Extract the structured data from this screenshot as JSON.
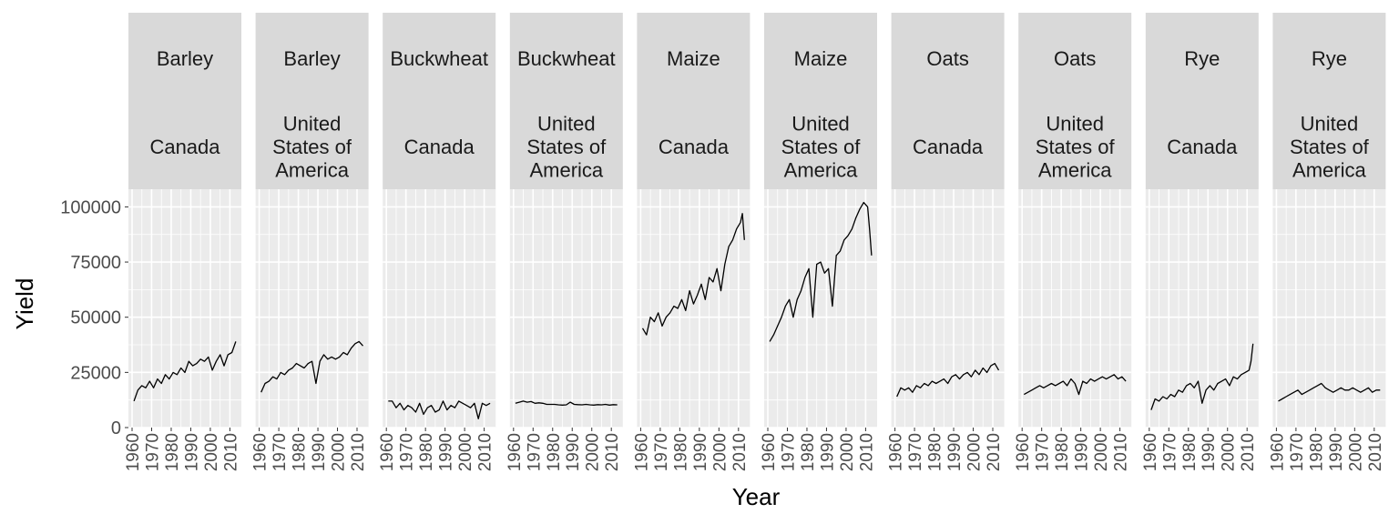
{
  "chart_data": {
    "type": "line",
    "xlabel": "Year",
    "ylabel": "Yield",
    "xlim": [
      1960,
      2014
    ],
    "ylim": [
      0,
      108000
    ],
    "x_ticks": [
      1960,
      1970,
      1980,
      1990,
      2000,
      2010
    ],
    "y_ticks": [
      0,
      25000,
      50000,
      75000,
      100000
    ],
    "y_tick_labels": [
      "0",
      "25000",
      "50000",
      "75000",
      "100000"
    ],
    "grid": true,
    "colors": {
      "panel_bg": "#ebebeb",
      "strip_bg": "#d9d9d9",
      "grid": "#ffffff",
      "line": "#000000"
    },
    "panels": [
      {
        "crop": "Barley",
        "country": [
          "Canada"
        ],
        "x": [
          1961,
          1963,
          1965,
          1967,
          1969,
          1971,
          1973,
          1975,
          1977,
          1979,
          1981,
          1983,
          1985,
          1987,
          1989,
          1991,
          1993,
          1995,
          1997,
          1999,
          2001,
          2003,
          2005,
          2007,
          2009,
          2011,
          2013
        ],
        "y": [
          12000,
          17000,
          19000,
          18000,
          21000,
          18000,
          22000,
          20000,
          24000,
          22000,
          25000,
          24000,
          27000,
          25000,
          30000,
          28000,
          29000,
          31000,
          30000,
          32000,
          26000,
          30000,
          33000,
          28000,
          33000,
          34000,
          39000
        ]
      },
      {
        "crop": "Barley",
        "country": [
          "United",
          "States of",
          "America"
        ],
        "x": [
          1961,
          1963,
          1965,
          1967,
          1969,
          1971,
          1973,
          1975,
          1977,
          1979,
          1981,
          1983,
          1985,
          1987,
          1989,
          1991,
          1993,
          1995,
          1997,
          1999,
          2001,
          2003,
          2005,
          2007,
          2009,
          2011,
          2013
        ],
        "y": [
          16000,
          20000,
          21000,
          23000,
          22000,
          25000,
          24000,
          26000,
          27000,
          29000,
          28000,
          27000,
          29000,
          30000,
          20000,
          30000,
          33000,
          31000,
          32000,
          31000,
          32000,
          34000,
          33000,
          36000,
          38000,
          39000,
          37000
        ]
      },
      {
        "crop": "Buckwheat",
        "country": [
          "Canada"
        ],
        "x": [
          1961,
          1963,
          1965,
          1967,
          1969,
          1971,
          1973,
          1975,
          1977,
          1979,
          1981,
          1983,
          1985,
          1987,
          1989,
          1991,
          1993,
          1995,
          1997,
          1999,
          2001,
          2003,
          2005,
          2007,
          2009,
          2011,
          2013
        ],
        "y": [
          12000,
          12000,
          9000,
          11000,
          8000,
          10000,
          9000,
          7000,
          11000,
          6000,
          9000,
          10000,
          7000,
          8000,
          12000,
          8000,
          10000,
          9000,
          12000,
          11000,
          10000,
          9000,
          11000,
          4000,
          11000,
          10000,
          11000
        ]
      },
      {
        "crop": "Buckwheat",
        "country": [
          "United",
          "States of",
          "America"
        ],
        "x": [
          1961,
          1963,
          1965,
          1967,
          1969,
          1971,
          1973,
          1975,
          1977,
          1979,
          1981,
          1983,
          1985,
          1987,
          1989,
          1991,
          1993,
          1995,
          1997,
          1999,
          2001,
          2003,
          2005,
          2007,
          2009,
          2011,
          2013
        ],
        "y": [
          11000,
          11500,
          12000,
          11500,
          11800,
          11000,
          11200,
          11000,
          10500,
          10500,
          10500,
          10300,
          10200,
          10300,
          11500,
          10500,
          10400,
          10300,
          10500,
          10300,
          10200,
          10400,
          10300,
          10500,
          10200,
          10400,
          10300
        ]
      },
      {
        "crop": "Maize",
        "country": [
          "Canada"
        ],
        "x": [
          1961,
          1963,
          1965,
          1967,
          1969,
          1971,
          1973,
          1975,
          1977,
          1979,
          1981,
          1983,
          1985,
          1987,
          1989,
          1991,
          1993,
          1995,
          1997,
          1999,
          2001,
          2003,
          2005,
          2007,
          2009,
          2011,
          2012,
          2013
        ],
        "y": [
          45000,
          42000,
          50000,
          48000,
          52000,
          46000,
          50000,
          52000,
          55000,
          54000,
          58000,
          53000,
          62000,
          56000,
          60000,
          65000,
          58000,
          68000,
          66000,
          72000,
          62000,
          74000,
          82000,
          85000,
          90000,
          93000,
          97000,
          85000
        ]
      },
      {
        "crop": "Maize",
        "country": [
          "United",
          "States of",
          "America"
        ],
        "x": [
          1961,
          1963,
          1965,
          1967,
          1969,
          1971,
          1973,
          1975,
          1977,
          1979,
          1981,
          1983,
          1985,
          1987,
          1989,
          1991,
          1993,
          1995,
          1997,
          1999,
          2001,
          2003,
          2005,
          2007,
          2009,
          2011,
          2012,
          2013
        ],
        "y": [
          39000,
          42000,
          46000,
          50000,
          55000,
          58000,
          50000,
          58000,
          62000,
          68000,
          72000,
          50000,
          74000,
          75000,
          70000,
          72000,
          55000,
          78000,
          80000,
          85000,
          87000,
          90000,
          95000,
          99000,
          102000,
          100000,
          90000,
          78000
        ]
      },
      {
        "crop": "Oats",
        "country": [
          "Canada"
        ],
        "x": [
          1961,
          1963,
          1965,
          1967,
          1969,
          1971,
          1973,
          1975,
          1977,
          1979,
          1981,
          1983,
          1985,
          1987,
          1989,
          1991,
          1993,
          1995,
          1997,
          1999,
          2001,
          2003,
          2005,
          2007,
          2009,
          2011,
          2013
        ],
        "y": [
          14000,
          18000,
          17000,
          18000,
          16000,
          19000,
          18000,
          20000,
          19000,
          21000,
          20000,
          21000,
          22000,
          20000,
          23000,
          24000,
          22000,
          24000,
          25000,
          23000,
          26000,
          24000,
          27000,
          25000,
          28000,
          29000,
          26000
        ]
      },
      {
        "crop": "Oats",
        "country": [
          "United",
          "States of",
          "America"
        ],
        "x": [
          1961,
          1963,
          1965,
          1967,
          1969,
          1971,
          1973,
          1975,
          1977,
          1979,
          1981,
          1983,
          1985,
          1987,
          1989,
          1991,
          1993,
          1995,
          1997,
          1999,
          2001,
          2003,
          2005,
          2007,
          2009,
          2011,
          2013
        ],
        "y": [
          15000,
          16000,
          17000,
          18000,
          19000,
          18000,
          19000,
          20000,
          19000,
          20000,
          21000,
          19000,
          22000,
          20000,
          15000,
          21000,
          20000,
          22000,
          21000,
          22000,
          23000,
          22000,
          23000,
          24000,
          22000,
          23000,
          21000
        ]
      },
      {
        "crop": "Rye",
        "country": [
          "Canada"
        ],
        "x": [
          1961,
          1963,
          1965,
          1967,
          1969,
          1971,
          1973,
          1975,
          1977,
          1979,
          1981,
          1983,
          1985,
          1987,
          1989,
          1991,
          1993,
          1995,
          1997,
          1999,
          2001,
          2003,
          2005,
          2007,
          2009,
          2011,
          2012,
          2013
        ],
        "y": [
          8000,
          13000,
          12000,
          14000,
          13000,
          15000,
          14000,
          17000,
          16000,
          19000,
          20000,
          18000,
          21000,
          11000,
          17000,
          19000,
          17000,
          20000,
          21000,
          22000,
          19000,
          23000,
          22000,
          24000,
          25000,
          26000,
          30000,
          38000
        ]
      },
      {
        "crop": "Rye",
        "country": [
          "United",
          "States of",
          "America"
        ],
        "x": [
          1961,
          1963,
          1965,
          1967,
          1969,
          1971,
          1973,
          1975,
          1977,
          1979,
          1981,
          1983,
          1985,
          1987,
          1989,
          1991,
          1993,
          1995,
          1997,
          1999,
          2001,
          2003,
          2005,
          2007,
          2009,
          2011,
          2013
        ],
        "y": [
          12000,
          13000,
          14000,
          15000,
          16000,
          17000,
          15000,
          16000,
          17000,
          18000,
          19000,
          20000,
          18000,
          17000,
          16000,
          17000,
          18000,
          17000,
          17000,
          18000,
          17000,
          16000,
          17000,
          18000,
          16000,
          17000,
          17000
        ]
      }
    ]
  }
}
